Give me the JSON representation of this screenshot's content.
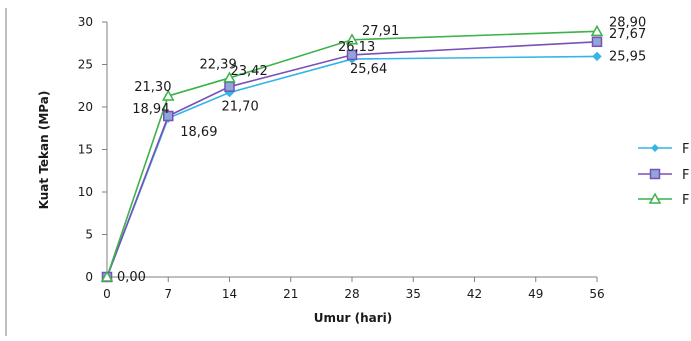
{
  "chart_data": {
    "type": "line",
    "xlabel": "Umur (hari)",
    "ylabel": "Kuat Tekan (MPa)",
    "xlim": [
      0,
      56
    ],
    "ylim": [
      0,
      30
    ],
    "x_ticks": [
      "0",
      "7",
      "14",
      "21",
      "28",
      "35",
      "42",
      "49",
      "56"
    ],
    "y_ticks": [
      "0",
      "5",
      "10",
      "15",
      "20",
      "25",
      "30"
    ],
    "grid": false,
    "legend_position": "right",
    "x": [
      0,
      7,
      14,
      28,
      56
    ],
    "series": [
      {
        "name": "F",
        "color": "#33b5e5",
        "marker": "diamond",
        "values": [
          0,
          18.69,
          21.7,
          25.64,
          25.95
        ],
        "labels": [
          "0,00",
          "18,69",
          "21,70",
          "25,64",
          "25,95"
        ]
      },
      {
        "name": "F",
        "color": "#7a4fb8",
        "marker": "square",
        "values": [
          0,
          18.94,
          22.39,
          26.13,
          27.67
        ],
        "labels": [
          "",
          "18,94",
          "22,39",
          "26,13",
          "27,67"
        ]
      },
      {
        "name": "F",
        "color": "#3cb24a",
        "marker": "triangle",
        "values": [
          0,
          21.3,
          23.42,
          27.91,
          28.9
        ],
        "labels": [
          "",
          "21,30",
          "23,42",
          "27,91",
          "28,90"
        ]
      }
    ]
  }
}
